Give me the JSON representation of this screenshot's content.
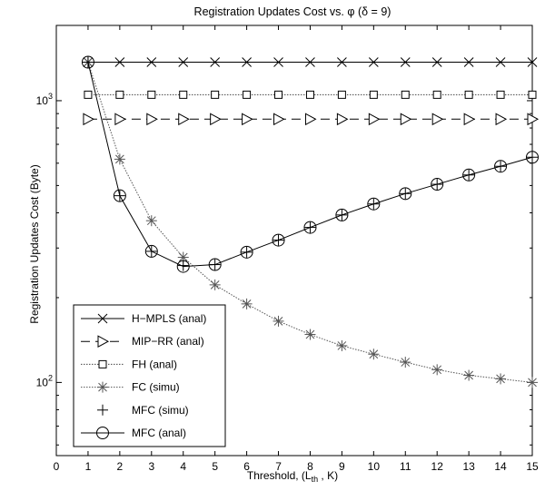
{
  "chart_data": {
    "type": "line",
    "title": "Registration Updates Cost vs. φ (δ = 9)",
    "xlabel": "Threshold, (L",
    "xlabel_sub": "th",
    "xlabel_tail": " , K)",
    "ylabel": "Registration Updates Cost (Byte)",
    "xlim": [
      0,
      15
    ],
    "ylim": [
      55,
      1850
    ],
    "y_scale": "log",
    "x_ticks": [
      0,
      1,
      2,
      3,
      4,
      5,
      6,
      7,
      8,
      9,
      10,
      11,
      12,
      13,
      14,
      15
    ],
    "y_ticks": [
      {
        "value": 100,
        "base": "10",
        "exp": "2"
      },
      {
        "value": 1000,
        "base": "10",
        "exp": "3"
      }
    ],
    "grid": false,
    "legend_position": "bottom-left",
    "x": [
      1,
      2,
      3,
      4,
      5,
      6,
      7,
      8,
      9,
      10,
      11,
      12,
      13,
      14,
      15
    ],
    "series": [
      {
        "name": "H−MPLS (anal)",
        "marker": "x",
        "dash": "",
        "color": "#000000",
        "values": [
          1370,
          1370,
          1370,
          1370,
          1370,
          1370,
          1370,
          1370,
          1370,
          1370,
          1370,
          1370,
          1370,
          1370,
          1370
        ]
      },
      {
        "name": "MIP−RR (anal)",
        "marker": "triangle-right",
        "dash": "10,6",
        "color": "#000000",
        "values": [
          860,
          860,
          860,
          860,
          860,
          860,
          860,
          860,
          860,
          860,
          860,
          860,
          860,
          860,
          860
        ]
      },
      {
        "name": "FH (anal)",
        "marker": "square",
        "dash": "1.5,1.5",
        "color": "#000000",
        "values": [
          1050,
          1050,
          1050,
          1050,
          1050,
          1050,
          1050,
          1050,
          1050,
          1050,
          1050,
          1050,
          1050,
          1050,
          1050
        ]
      },
      {
        "name": "FC (simu)",
        "marker": "star",
        "dash": "1.5,1.5",
        "color": "#000000",
        "values": [
          1370,
          620,
          375,
          278,
          222,
          190,
          165,
          148,
          135,
          126,
          118,
          111,
          106,
          103,
          100
        ]
      },
      {
        "name": "MFC (simu)",
        "marker": "plus",
        "dash": "",
        "color": "#000000",
        "values": [
          1370,
          460,
          292,
          260,
          262,
          290,
          320,
          355,
          393,
          430,
          468,
          505,
          545,
          585,
          630
        ]
      },
      {
        "name": "MFC (anal)",
        "marker": "circle",
        "dash": "",
        "color": "#000000",
        "values": [
          1370,
          460,
          292,
          258,
          262,
          290,
          320,
          355,
          393,
          430,
          468,
          505,
          545,
          585,
          630
        ]
      }
    ]
  }
}
